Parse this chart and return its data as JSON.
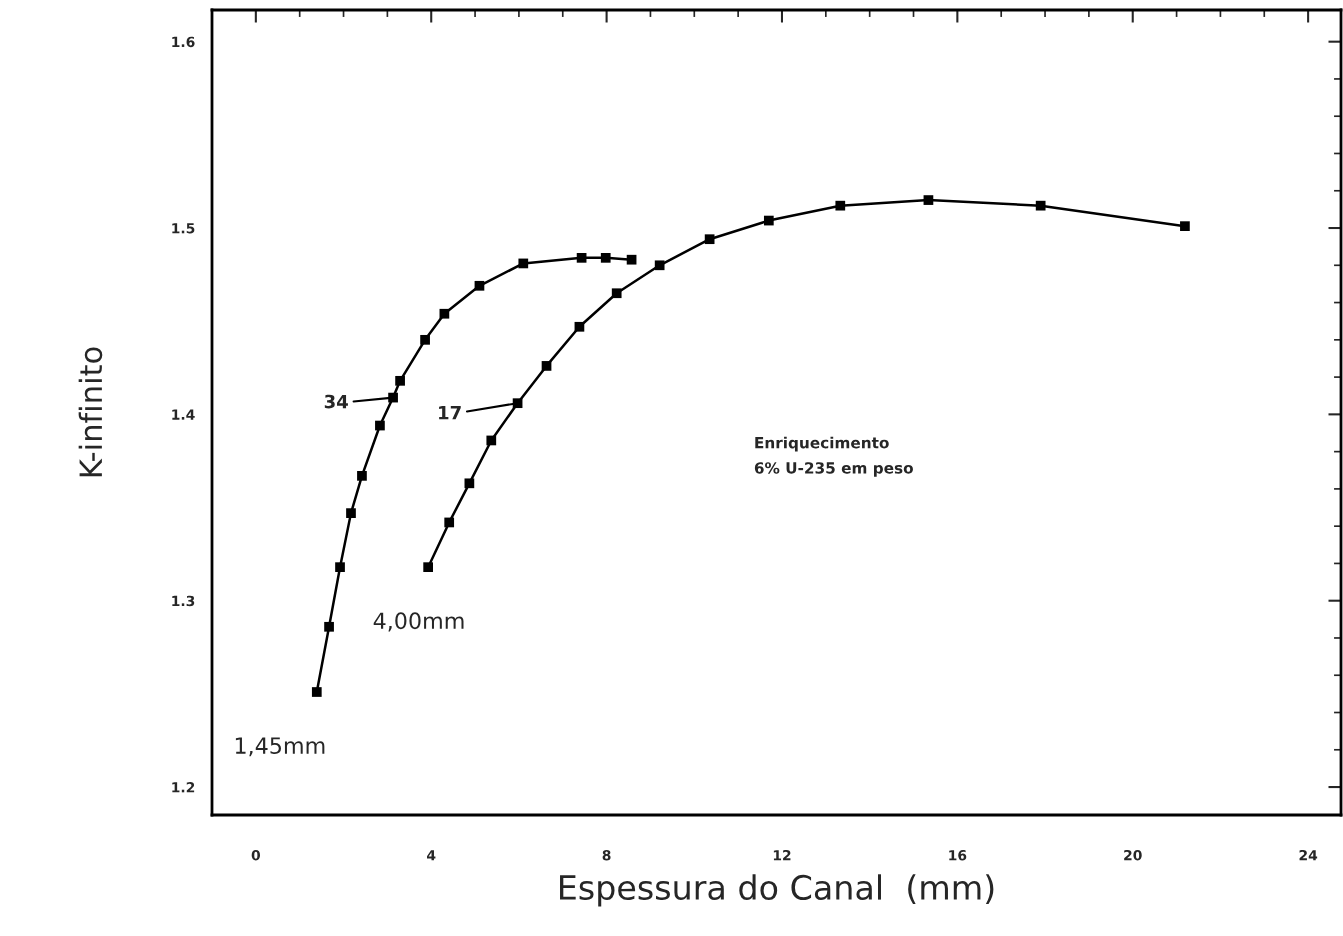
{
  "chart_data": {
    "type": "line",
    "xlabel": "Espessura do Canal  (mm)",
    "ylabel": "K-infinito",
    "xlim": [
      -1,
      24.75
    ],
    "ylim": [
      1.185,
      1.617
    ],
    "xticks": [
      0,
      4,
      8,
      12,
      16,
      20,
      24
    ],
    "yticks": [
      1.2,
      1.3,
      1.4,
      1.5,
      1.6
    ],
    "grid": false,
    "marker": "square",
    "line_style": "solid",
    "series": [
      {
        "color": "#000000",
        "x": [
          1.39,
          1.67,
          1.92,
          2.17,
          2.42,
          2.83,
          3.13,
          3.29,
          3.86,
          4.3,
          5.1,
          6.1,
          7.43,
          7.98,
          8.57
        ],
        "values": [
          1.251,
          1.286,
          1.318,
          1.347,
          1.367,
          1.394,
          1.409,
          1.418,
          1.44,
          1.454,
          1.469,
          1.481,
          1.484,
          1.484,
          1.483
        ]
      },
      {
        "color": "#000000",
        "x": [
          3.93,
          4.41,
          4.87,
          5.37,
          5.97,
          6.63,
          7.38,
          8.23,
          9.21,
          10.35,
          11.7,
          13.33,
          15.34,
          17.9,
          21.19
        ],
        "values": [
          1.318,
          1.342,
          1.363,
          1.386,
          1.406,
          1.426,
          1.447,
          1.465,
          1.48,
          1.494,
          1.504,
          1.512,
          1.515,
          1.512,
          1.501
        ]
      }
    ],
    "annotations": [
      {
        "text": "34",
        "x": 3.13,
        "y": 1.409
      },
      {
        "text": "17",
        "x": 5.97,
        "y": 1.406
      },
      {
        "text": "1,45mm",
        "x": 1.39,
        "y": 1.251
      },
      {
        "text": "4,00mm",
        "x": 3.93,
        "y": 1.318
      },
      "Enriquecimento\n6% U-235 em peso"
    ]
  }
}
